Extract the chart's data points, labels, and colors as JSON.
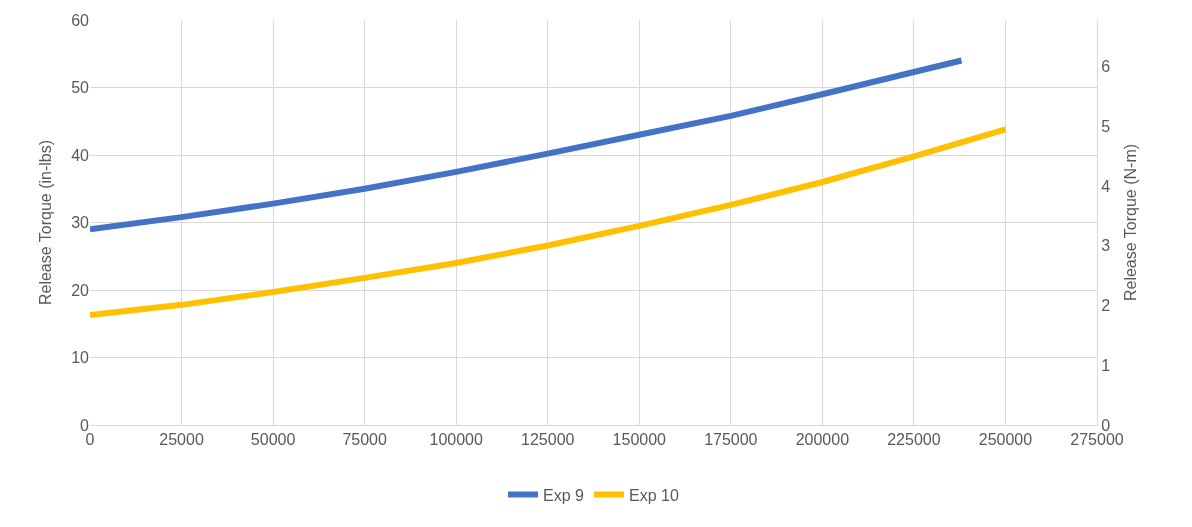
{
  "chart_data": {
    "type": "line",
    "ylabel": "Release Torque (in-lbs)",
    "y2label": "Release Torque (N-m)",
    "xlim": [
      0,
      275000
    ],
    "xticks": [
      0,
      25000,
      50000,
      75000,
      100000,
      125000,
      150000,
      175000,
      200000,
      225000,
      250000,
      275000
    ],
    "ylim": [
      0,
      60
    ],
    "yticks": [
      0,
      10,
      20,
      30,
      40,
      50,
      60
    ],
    "y2lim": [
      0,
      6.78
    ],
    "y2ticks": [
      0,
      1,
      2,
      3,
      4,
      5,
      6
    ],
    "grid": true,
    "legend": "bottom",
    "marker": "none",
    "line_style": "solid",
    "series": [
      {
        "name": "Exp 9",
        "color": "#4472c4",
        "x": [
          0,
          25000,
          50000,
          75000,
          100000,
          125000,
          150000,
          175000,
          200000,
          225000,
          238000
        ],
        "values": [
          29,
          30.8,
          32.8,
          35,
          37.5,
          40.2,
          43,
          45.8,
          49,
          52.3,
          54
        ]
      },
      {
        "name": "Exp 10",
        "color": "#ffc000",
        "x": [
          0,
          25000,
          50000,
          75000,
          100000,
          125000,
          150000,
          175000,
          200000,
          225000,
          250000
        ],
        "values": [
          16.3,
          17.8,
          19.7,
          21.8,
          24,
          26.6,
          29.5,
          32.6,
          36,
          39.8,
          43.8
        ]
      }
    ]
  }
}
